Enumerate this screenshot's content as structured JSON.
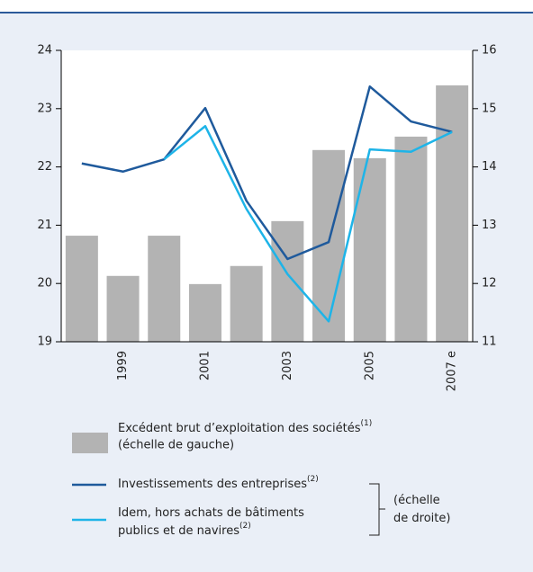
{
  "chart_data": {
    "type": "bar_line",
    "categories": [
      null,
      "1999",
      null,
      "2001",
      null,
      "2003",
      null,
      "2005",
      null,
      "2007 e"
    ],
    "ylim": [
      19,
      24
    ],
    "yticks": [
      19,
      20,
      21,
      22,
      23,
      24
    ],
    "y2lim": [
      11,
      16
    ],
    "y2ticks": [
      11,
      12,
      13,
      14,
      15,
      16
    ],
    "series": [
      {
        "name": "Excédent brut d’exploitation des sociétés",
        "note": "(1)",
        "scale_note": "(échelle de gauche)",
        "type": "bar",
        "color": "#b3b3b3",
        "values": [
          20.82,
          20.13,
          20.82,
          19.99,
          20.3,
          21.07,
          22.29,
          22.15,
          22.52,
          23.4
        ]
      },
      {
        "name": "Investissements des entreprises",
        "note": "(2)",
        "type": "line",
        "axis": "y2",
        "color": "#1f5a9c",
        "values": [
          14.06,
          13.92,
          14.13,
          15.01,
          13.42,
          12.42,
          12.71,
          15.38,
          14.78,
          14.6
        ]
      },
      {
        "name": "Idem, hors achats de bâtiments publics et de navires",
        "note": "(2)",
        "type": "line",
        "axis": "y2",
        "color": "#1eb4e8",
        "values": [
          null,
          null,
          14.13,
          14.7,
          13.28,
          12.16,
          11.35,
          14.3,
          14.26,
          14.6
        ]
      }
    ],
    "right_scale_note": "(échelle de droite)"
  }
}
